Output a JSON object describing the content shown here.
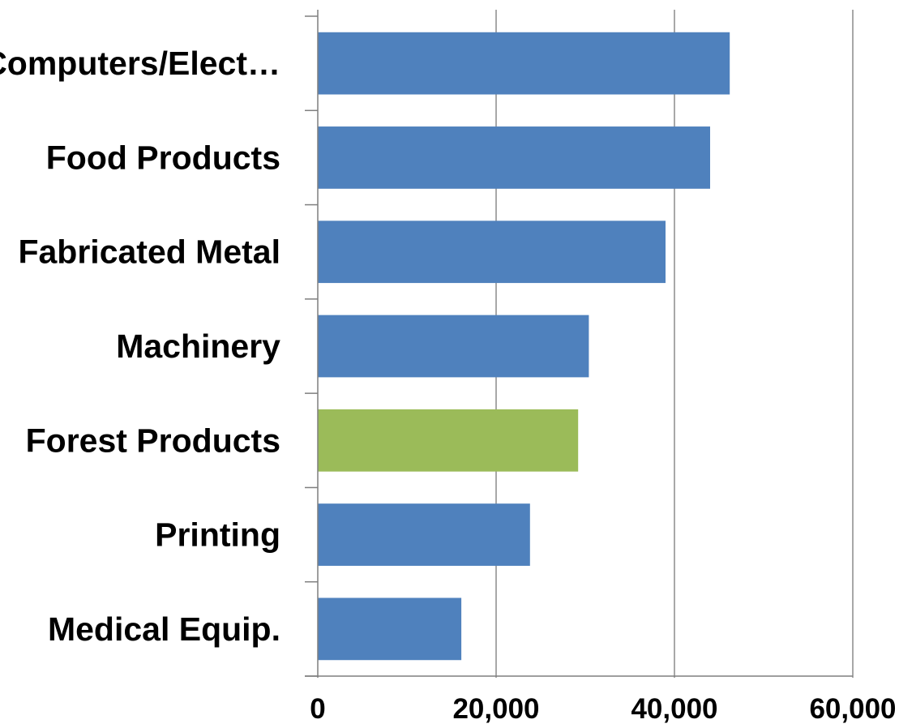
{
  "chart_data": {
    "type": "bar",
    "orientation": "horizontal",
    "categories": [
      "Computers/Elect…",
      "Food Products",
      "Fabricated Metal",
      "Machinery",
      "Forest Products",
      "Printing",
      "Medical Equip."
    ],
    "values": [
      46200,
      44000,
      39000,
      30400,
      29200,
      23800,
      16100
    ],
    "bar_colors": [
      "#4f81bd",
      "#4f81bd",
      "#4f81bd",
      "#4f81bd",
      "#9bbb59",
      "#4f81bd",
      "#4f81bd"
    ],
    "xlim": [
      0,
      60000
    ],
    "x_ticks": [
      0,
      20000,
      40000,
      60000
    ],
    "x_tick_labels": [
      "0",
      "20,000",
      "40,000",
      "60,000"
    ],
    "title": "",
    "xlabel": "",
    "ylabel": "",
    "grid": "vertical",
    "legend": "none"
  }
}
